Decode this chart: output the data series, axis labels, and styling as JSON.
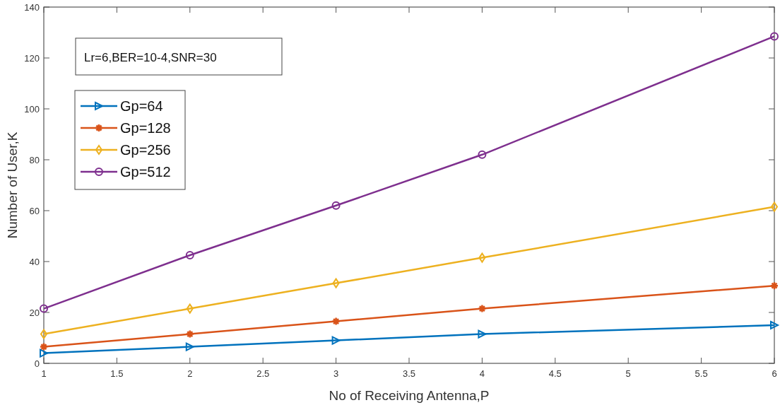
{
  "chart_data": {
    "type": "line",
    "xlabel": "No of Receiving Antenna,P",
    "ylabel": "Number of User,K",
    "annotations": [
      "Lr=6,BER=10-4,SNR=30"
    ],
    "x": [
      1,
      2,
      3,
      4,
      6
    ],
    "series": [
      {
        "name": "Gp=64",
        "color": "#0072bd",
        "marker": "triangle",
        "values": [
          4,
          6.5,
          9,
          11.5,
          15
        ]
      },
      {
        "name": "Gp=128",
        "color": "#d95319",
        "marker": "cross",
        "values": [
          6.5,
          11.5,
          16.5,
          21.5,
          30.5
        ]
      },
      {
        "name": "Gp=256",
        "color": "#edb120",
        "marker": "diamond",
        "values": [
          11.5,
          21.5,
          31.5,
          41.5,
          61.5
        ]
      },
      {
        "name": "Gp=512",
        "color": "#7e2f8e",
        "marker": "circle",
        "values": [
          21.5,
          42.5,
          62,
          82,
          128.5
        ]
      }
    ],
    "xlim": [
      1,
      6
    ],
    "xticks": [
      1,
      1.5,
      2,
      2.5,
      3,
      3.5,
      4,
      4.5,
      5,
      5.5,
      6
    ],
    "ylim": [
      0,
      140
    ],
    "yticks": [
      0,
      20,
      40,
      60,
      80,
      100,
      120,
      140
    ],
    "grid": false,
    "legend": "top left",
    "line_style": "solid"
  }
}
